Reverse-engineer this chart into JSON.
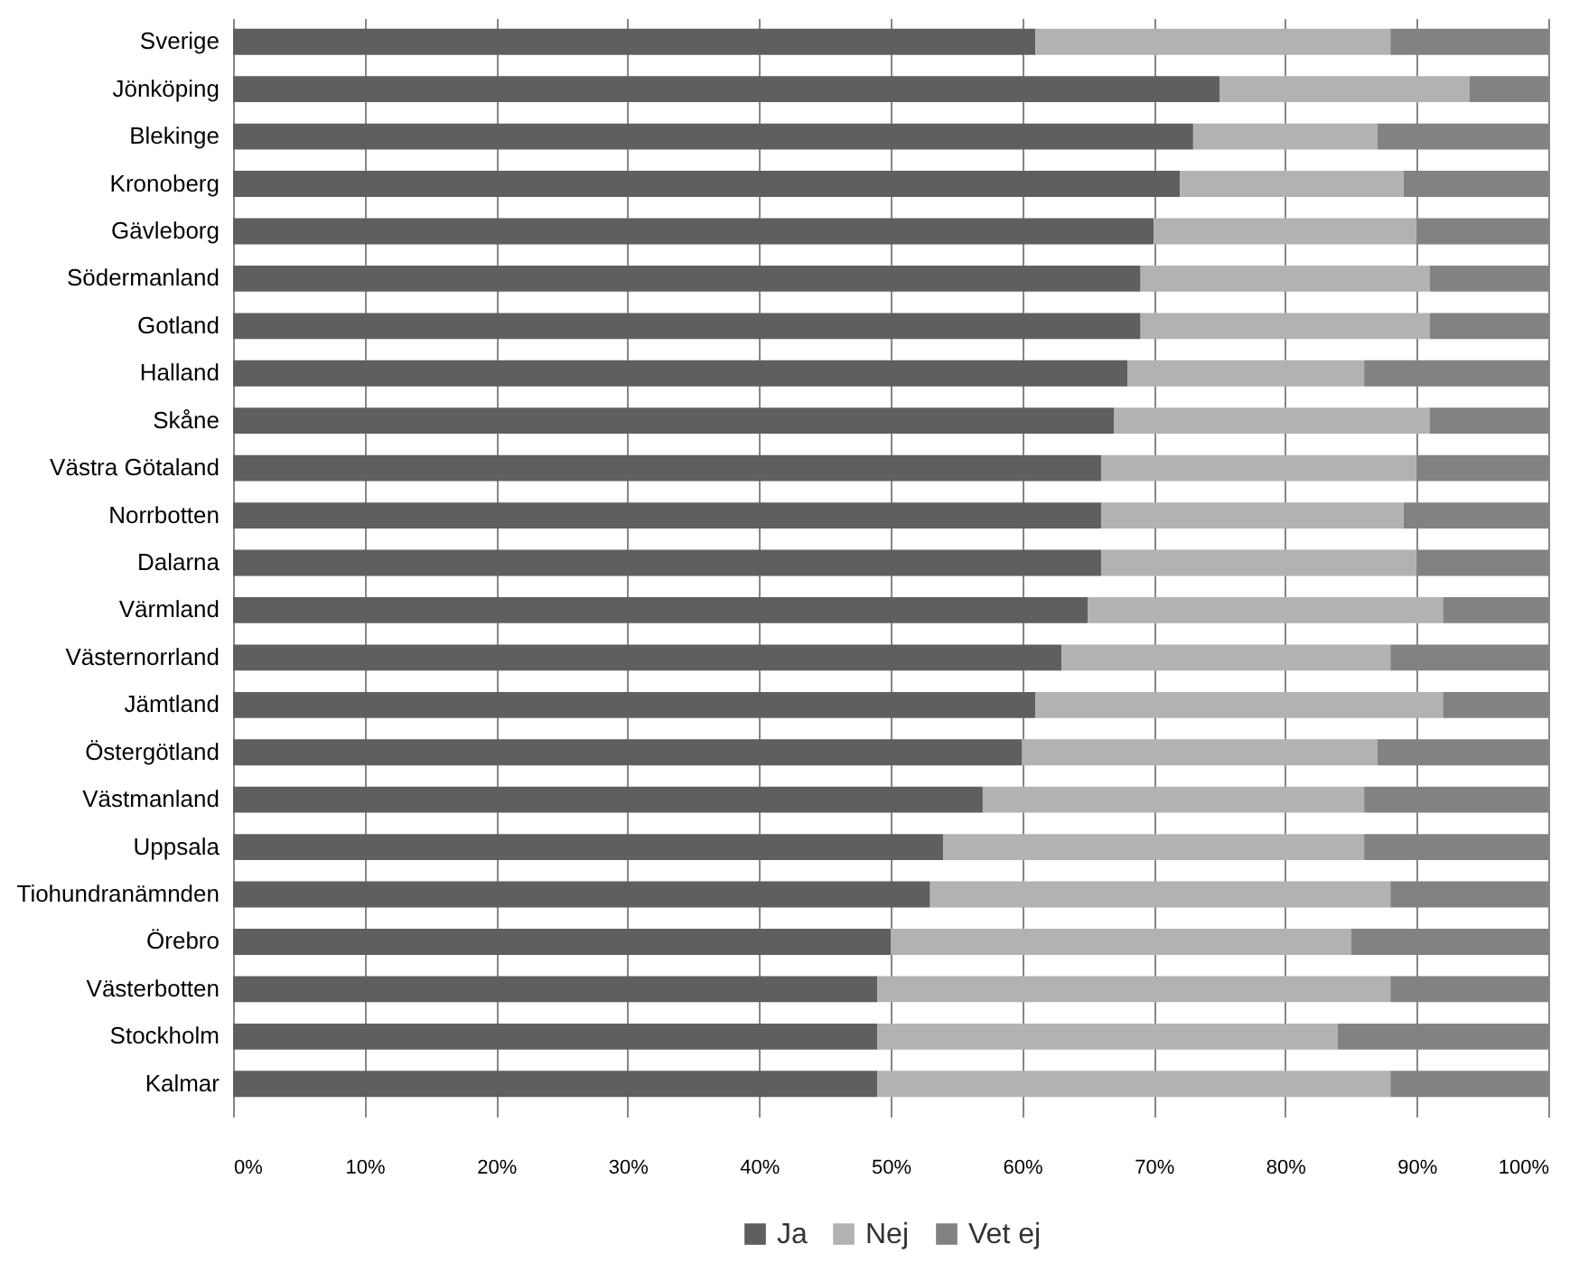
{
  "chart_data": {
    "type": "bar",
    "orientation": "horizontal",
    "stacked": true,
    "categories": [
      "Sverige",
      "Jönköping",
      "Blekinge",
      "Kronoberg",
      "Gävleborg",
      "Södermanland",
      "Gotland",
      "Halland",
      "Skåne",
      "Västra Götaland",
      "Norrbotten",
      "Dalarna",
      "Värmland",
      "Västernorrland",
      "Jämtland",
      "Östergötland",
      "Västmanland",
      "Uppsala",
      "Tiohundranämnden",
      "Örebro",
      "Västerbotten",
      "Stockholm",
      "Kalmar"
    ],
    "series": [
      {
        "name": "Ja",
        "color": "#5f5f5f",
        "values": [
          61,
          75,
          73,
          72,
          70,
          69,
          69,
          68,
          67,
          66,
          66,
          66,
          65,
          63,
          61,
          60,
          57,
          54,
          53,
          50,
          49,
          49,
          49
        ]
      },
      {
        "name": "Nej",
        "color": "#b2b2b2",
        "values": [
          27,
          19,
          14,
          17,
          20,
          22,
          22,
          18,
          24,
          24,
          23,
          24,
          27,
          25,
          31,
          27,
          29,
          32,
          35,
          35,
          39,
          35,
          39
        ]
      },
      {
        "name": "Vet ej",
        "color": "#828282",
        "values": [
          12,
          6,
          13,
          11,
          10,
          9,
          9,
          14,
          9,
          10,
          11,
          10,
          8,
          12,
          8,
          13,
          14,
          14,
          12,
          15,
          12,
          16,
          12
        ]
      }
    ],
    "xlim": [
      0,
      100
    ],
    "xticks": [
      {
        "value": 0,
        "label": "0%"
      },
      {
        "value": 10,
        "label": "10%"
      },
      {
        "value": 20,
        "label": "20%"
      },
      {
        "value": 30,
        "label": "30%"
      },
      {
        "value": 40,
        "label": "40%"
      },
      {
        "value": 50,
        "label": "50%"
      },
      {
        "value": 60,
        "label": "60%"
      },
      {
        "value": 70,
        "label": "70%"
      },
      {
        "value": 80,
        "label": "80%"
      },
      {
        "value": 90,
        "label": "90%"
      },
      {
        "value": 100,
        "label": "100%"
      }
    ],
    "grid": "x",
    "legend": "bottom"
  }
}
